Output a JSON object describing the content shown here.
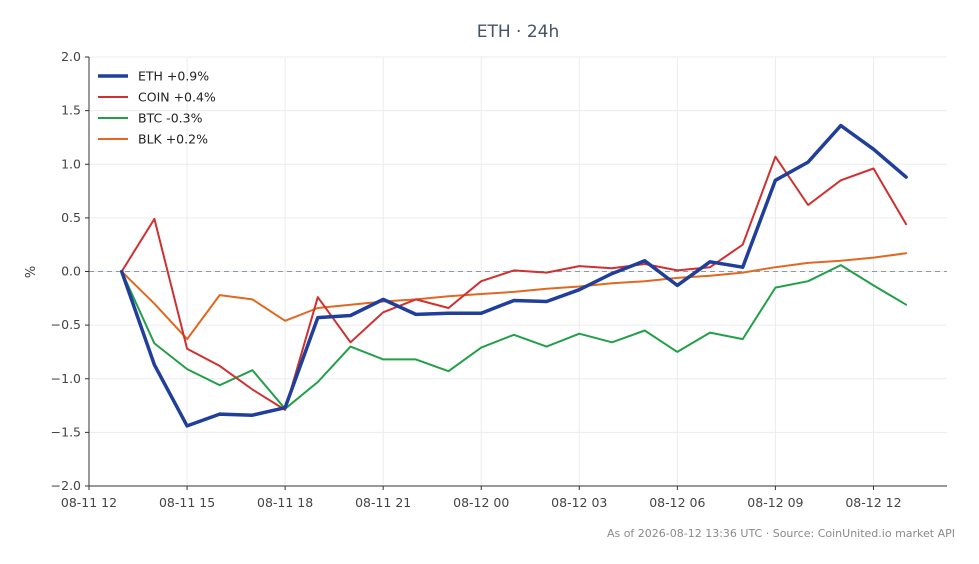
{
  "chart_data": {
    "type": "line",
    "title": "ETH · 24h",
    "ylabel": "%",
    "xlabel": "",
    "ylim": [
      -2.0,
      2.0
    ],
    "y_ticks": [
      -2.0,
      -1.5,
      -1.0,
      -0.5,
      0.0,
      0.5,
      1.0,
      1.5,
      2.0
    ],
    "y_tick_labels": [
      "−2.0",
      "−1.5",
      "−1.0",
      "−0.5",
      "0.0",
      "0.5",
      "1.0",
      "1.5",
      "2.0"
    ],
    "x_range": [
      "08-11 12:00",
      "08-12 14:15"
    ],
    "x_ticks": [
      "08-11 12:00",
      "08-11 15:00",
      "08-11 18:00",
      "08-11 21:00",
      "08-12 00:00",
      "08-12 03:00",
      "08-12 06:00",
      "08-12 09:00",
      "08-12 12:00"
    ],
    "x_tick_labels": [
      "08-11 12",
      "08-11 15",
      "08-11 18",
      "08-11 21",
      "08-12 00",
      "08-12 03",
      "08-12 06",
      "08-12 09",
      "08-12 12"
    ],
    "x": [
      "08-11 13:00",
      "08-11 14:00",
      "08-11 15:00",
      "08-11 16:00",
      "08-11 17:00",
      "08-11 18:00",
      "08-11 19:00",
      "08-11 20:00",
      "08-11 21:00",
      "08-11 22:00",
      "08-11 23:00",
      "08-12 00:00",
      "08-12 01:00",
      "08-12 02:00",
      "08-12 03:00",
      "08-12 04:00",
      "08-12 05:00",
      "08-12 06:00",
      "08-12 07:00",
      "08-12 08:00",
      "08-12 09:00",
      "08-12 10:00",
      "08-12 11:00",
      "08-12 12:00",
      "08-12 13:00"
    ],
    "series": [
      {
        "name": "ETH +0.9%",
        "color": "#1f3f9a",
        "width": 3.5,
        "values": [
          0.0,
          -0.87,
          -1.44,
          -1.33,
          -1.34,
          -1.27,
          -0.43,
          -0.41,
          -0.26,
          -0.4,
          -0.39,
          -0.39,
          -0.27,
          -0.28,
          -0.17,
          -0.02,
          0.1,
          -0.13,
          0.09,
          0.04,
          0.85,
          1.02,
          1.36,
          1.14,
          0.88
        ]
      },
      {
        "name": "COIN +0.4%",
        "color": "#d03030",
        "width": 2,
        "values": [
          0.0,
          0.49,
          -0.72,
          -0.88,
          -1.1,
          -1.29,
          -0.24,
          -0.66,
          -0.38,
          -0.26,
          -0.34,
          -0.09,
          0.01,
          -0.01,
          0.05,
          0.03,
          0.07,
          0.01,
          0.04,
          0.25,
          1.07,
          0.62,
          0.85,
          0.96,
          0.44
        ]
      },
      {
        "name": "BTC -0.3%",
        "color": "#22a049",
        "width": 2,
        "values": [
          0.0,
          -0.67,
          -0.91,
          -1.06,
          -0.92,
          -1.28,
          -1.03,
          -0.7,
          -0.82,
          -0.82,
          -0.93,
          -0.71,
          -0.59,
          -0.7,
          -0.58,
          -0.66,
          -0.55,
          -0.75,
          -0.57,
          -0.63,
          -0.15,
          -0.09,
          0.06,
          -0.13,
          -0.31
        ]
      },
      {
        "name": "BLK +0.2%",
        "color": "#e06820",
        "width": 2,
        "values": [
          0.0,
          -0.3,
          -0.63,
          -0.22,
          -0.26,
          -0.46,
          -0.34,
          -0.31,
          -0.28,
          -0.26,
          -0.23,
          -0.21,
          -0.19,
          -0.16,
          -0.14,
          -0.11,
          -0.09,
          -0.06,
          -0.04,
          -0.01,
          0.04,
          0.08,
          0.1,
          0.13,
          0.17
        ]
      }
    ],
    "baseline": 0.0,
    "grid": true,
    "legend": "top-left"
  },
  "footer": "As of 2026-08-12 13:36 UTC · Source: CoinUnited.io market API"
}
